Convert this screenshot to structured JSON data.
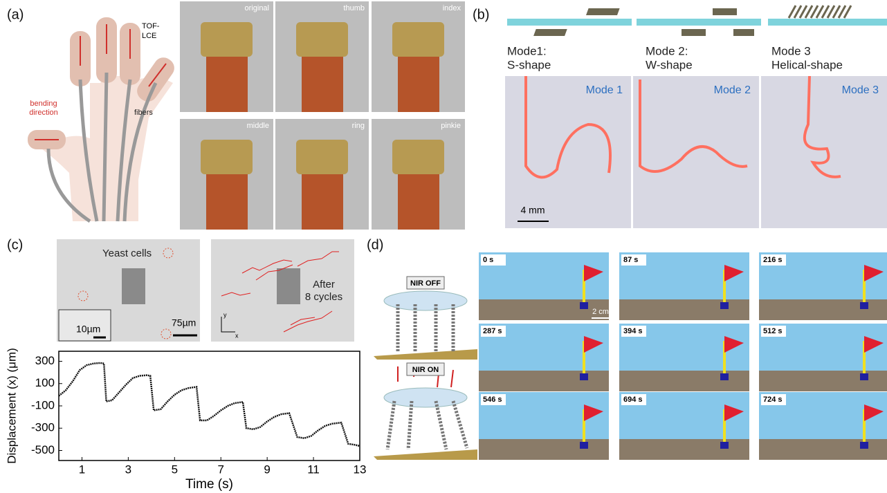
{
  "panel_a": {
    "label": "(a)",
    "tof_lce": [
      "TOF-",
      "LCE"
    ],
    "bending": [
      "bending",
      "direction"
    ],
    "fibers": "fibers",
    "photo_labels": [
      "original",
      "thumb",
      "index",
      "middle",
      "ring",
      "pinkie"
    ]
  },
  "panel_b": {
    "label": "(b)",
    "modes": [
      [
        "Mode1:",
        "S-shape"
      ],
      [
        "Mode 2:",
        "W-shape"
      ],
      [
        "Mode 3",
        "Helical-shape"
      ]
    ],
    "photo_labels": [
      "Mode 1",
      "Mode 2",
      "Mode 3"
    ],
    "scale": "4 mm"
  },
  "panel_c": {
    "label": "(c)",
    "yeast": "Yeast cells",
    "inset_scale": "10µm",
    "scale": "75µm",
    "after": [
      "After",
      "8 cycles"
    ],
    "axis_y": "y",
    "axis_x": "x"
  },
  "panel_d": {
    "label": "(d)",
    "nir_off": "NIR OFF",
    "nir_on": "NIR ON",
    "scale": "2 cm",
    "times": [
      "0 s",
      "87 s",
      "216 s",
      "287 s",
      "394 s",
      "512 s",
      "546 s",
      "694 s",
      "724 s"
    ]
  },
  "chart_data": {
    "type": "line",
    "xlabel": "Time (s)",
    "ylabel": "Displacement (x) (μm)",
    "color": "#111111",
    "x": [
      0,
      0.3,
      0.6,
      0.9,
      1.2,
      1.5,
      1.8,
      1.95,
      2.05,
      2.3,
      2.6,
      2.9,
      3.2,
      3.5,
      3.8,
      3.95,
      4.1,
      4.4,
      4.7,
      5.0,
      5.3,
      5.6,
      5.95,
      6.1,
      6.4,
      6.7,
      7.0,
      7.3,
      7.6,
      7.95,
      8.1,
      8.4,
      8.7,
      9.0,
      9.3,
      9.6,
      9.95,
      10.3,
      10.6,
      10.9,
      11.2,
      11.5,
      11.8,
      12.2,
      12.5,
      12.8,
      13.0
    ],
    "values": [
      -10,
      40,
      120,
      220,
      265,
      280,
      285,
      280,
      -60,
      -50,
      20,
      90,
      150,
      170,
      175,
      170,
      -140,
      -130,
      -60,
      0,
      40,
      60,
      70,
      -230,
      -230,
      -190,
      -140,
      -100,
      -75,
      -65,
      -300,
      -310,
      -290,
      -240,
      -200,
      -175,
      -165,
      -380,
      -390,
      -370,
      -320,
      -280,
      -260,
      -250,
      -440,
      -450,
      -460
    ],
    "xlim": [
      0,
      13
    ],
    "ylim": [
      -590,
      390
    ],
    "xticks": [
      1,
      3,
      5,
      7,
      9,
      11,
      13
    ],
    "yticks": [
      300,
      100,
      -100,
      -300,
      -500
    ]
  }
}
